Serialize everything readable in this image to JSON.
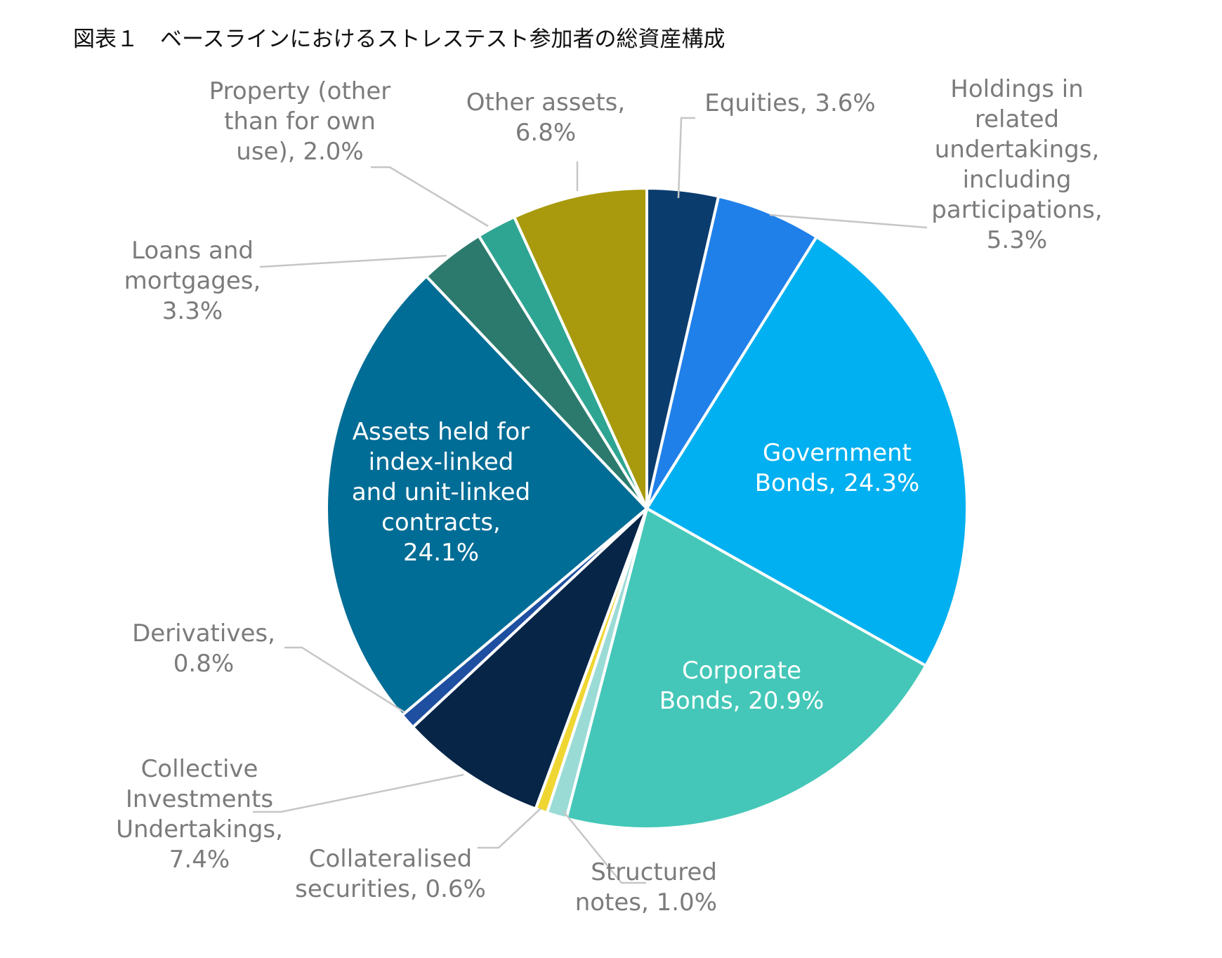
{
  "title": "図表１　ベースラインにおけるストレステスト参加者の総資産構成",
  "chart_data": {
    "type": "pie",
    "title": "図表１　ベースラインにおけるストレステスト参加者の総資産構成",
    "start": "12 o'clock",
    "direction": "clockwise",
    "slices": [
      {
        "label": [
          "Equities, 3.6%"
        ],
        "value": 3.6,
        "color": "#0b3c6e",
        "label_color": "outside"
      },
      {
        "label": [
          "Holdings in",
          "related",
          "undertakings,",
          "including",
          "participations,",
          "5.3%"
        ],
        "value": 5.3,
        "color": "#2080ea",
        "label_color": "outside"
      },
      {
        "label": [
          "Government",
          "Bonds, 24.3%"
        ],
        "value": 24.3,
        "color": "#00b0f0",
        "label_color": "inside"
      },
      {
        "label": [
          "Corporate",
          "Bonds, 20.9%"
        ],
        "value": 20.9,
        "color": "#44c7b8",
        "label_color": "inside"
      },
      {
        "label": [
          "Structured",
          "notes, 1.0%"
        ],
        "value": 1.0,
        "color": "#9adbd6",
        "label_color": "outside"
      },
      {
        "label": [
          "Collateralised",
          "securities, 0.6%"
        ],
        "value": 0.6,
        "color": "#f0d632",
        "label_color": "outside"
      },
      {
        "label": [
          "Collective",
          "Investments",
          "Undertakings,",
          "7.4%"
        ],
        "value": 7.4,
        "color": "#062547",
        "label_color": "outside"
      },
      {
        "label": [
          "Derivatives,",
          "0.8%"
        ],
        "value": 0.8,
        "color": "#1f4fa0",
        "label_color": "outside"
      },
      {
        "label": [
          "Assets held for",
          "index-linked",
          "and unit-linked",
          "contracts,",
          "24.1%"
        ],
        "value": 24.1,
        "color": "#006d96",
        "label_color": "inside"
      },
      {
        "label": [
          "Loans and",
          "mortgages,",
          "3.3%"
        ],
        "value": 3.3,
        "color": "#2c7a6d",
        "label_color": "outside"
      },
      {
        "label": [
          "Property (other",
          "than for own",
          "use), 2.0%"
        ],
        "value": 2.0,
        "color": "#2ea593",
        "label_color": "outside"
      },
      {
        "label": [
          "Other assets,",
          "6.8%"
        ],
        "value": 6.8,
        "color": "#a89a0c",
        "label_color": "outside"
      }
    ]
  }
}
